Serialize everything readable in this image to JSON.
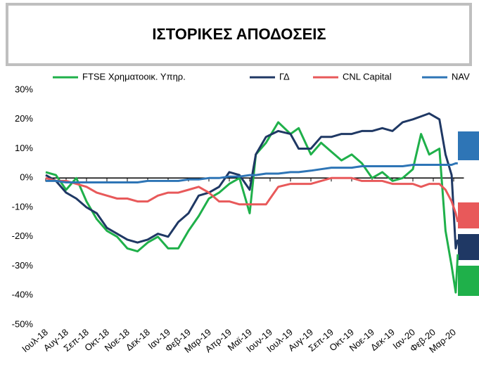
{
  "chart_data": {
    "type": "line",
    "title": "ΙΣΤΟΡΙΚΕΣ ΑΠΟΔΟΣΕΙΣ",
    "x": [
      0,
      0.5,
      1,
      1.5,
      2,
      2.5,
      3,
      3.5,
      4,
      4.5,
      5,
      5.5,
      6,
      6.5,
      7,
      7.5,
      8,
      8.5,
      9,
      9.5,
      10,
      10.3,
      10.8,
      11.4,
      12,
      12.4,
      13,
      13.5,
      14,
      14.5,
      15,
      15.5,
      16,
      16.5,
      17,
      17.5,
      18,
      18.4,
      18.8,
      19.3,
      19.6,
      19.9,
      20.1,
      20.2
    ],
    "series": [
      {
        "name": "FTSE Χρηματοοικ. Υπηρ.",
        "color": "#1fb04a",
        "values": [
          2,
          1,
          -4,
          0,
          -8,
          -14,
          -18,
          -20,
          -24,
          -25,
          -22,
          -20,
          -24,
          -24,
          -18,
          -13,
          -7,
          -5,
          -2,
          0,
          -12,
          8,
          12,
          19,
          15,
          17,
          8,
          12,
          9,
          6,
          8,
          5,
          0,
          2,
          -1,
          0,
          3,
          15,
          8,
          10,
          -18,
          -30,
          -39,
          -26
        ]
      },
      {
        "name": "ΓΔ",
        "color": "#1f3864",
        "values": [
          1,
          -1,
          -5,
          -7,
          -10,
          -12,
          -17,
          -19,
          -21,
          -22,
          -21,
          -19,
          -20,
          -15,
          -12,
          -6,
          -5,
          -3,
          2,
          1,
          -4,
          8,
          14,
          16,
          15,
          10,
          10,
          14,
          14,
          15,
          15,
          16,
          16,
          17,
          16,
          19,
          20,
          21,
          22,
          20,
          8,
          1,
          -24,
          -21
        ]
      },
      {
        "name": "CNL Capital",
        "color": "#e8595a",
        "values": [
          0,
          -1,
          -1,
          -2,
          -3,
          -5,
          -6,
          -7,
          -7,
          -8,
          -8,
          -6,
          -5,
          -5,
          -4,
          -3,
          -5,
          -8,
          -8,
          -9,
          -9,
          -9,
          -9,
          -3,
          -2,
          -2,
          -2,
          -1,
          0,
          0,
          0,
          -1,
          -1,
          -1,
          -2,
          -2,
          -2,
          -3,
          -2,
          -2,
          -4,
          -8,
          -12,
          -15
        ]
      },
      {
        "name": "NAV",
        "color": "#2e75b6",
        "values": [
          -1,
          -1,
          -1.5,
          -1.5,
          -1.5,
          -1.5,
          -1.5,
          -1.5,
          -1.5,
          -1.5,
          -1,
          -1,
          -1,
          -1,
          -0.5,
          -0.5,
          0,
          0,
          0.5,
          0.5,
          1,
          1,
          1.5,
          1.5,
          2,
          2,
          2.5,
          3,
          3.5,
          3.5,
          3.5,
          4,
          4,
          4,
          4,
          4,
          4.5,
          4.5,
          4.5,
          4.5,
          4.5,
          4.5,
          5,
          5
        ]
      }
    ],
    "xlim": [
      0,
      20.5
    ],
    "xticks": [
      {
        "value": 0,
        "label": "Ιουλ-18"
      },
      {
        "value": 1,
        "label": "Αυγ-18"
      },
      {
        "value": 2,
        "label": "Σεπ-18"
      },
      {
        "value": 3,
        "label": "Οκτ-18"
      },
      {
        "value": 4,
        "label": "Νοε-18"
      },
      {
        "value": 5,
        "label": "Δεκ-18"
      },
      {
        "value": 6,
        "label": "Ιαν-19"
      },
      {
        "value": 7,
        "label": "Φεβ-19"
      },
      {
        "value": 8,
        "label": "Μαρ-19"
      },
      {
        "value": 9,
        "label": "Απρ-19"
      },
      {
        "value": 10,
        "label": "Μαϊ-19"
      },
      {
        "value": 11,
        "label": "Ιουν-19"
      },
      {
        "value": 12,
        "label": "Ιουλ-19"
      },
      {
        "value": 13,
        "label": "Αυγ-19"
      },
      {
        "value": 14,
        "label": "Σεπ-19"
      },
      {
        "value": 15,
        "label": "Οκτ-19"
      },
      {
        "value": 16,
        "label": "Νοε-19"
      },
      {
        "value": 17,
        "label": "Δεκ-19"
      },
      {
        "value": 18,
        "label": "Ιαν-20"
      },
      {
        "value": 19,
        "label": "Φεβ-20"
      },
      {
        "value": 20,
        "label": "Μαρ-20"
      }
    ],
    "ylim": [
      -50,
      30
    ],
    "yticks": [
      {
        "value": 30,
        "label": "30%"
      },
      {
        "value": 20,
        "label": "20%"
      },
      {
        "value": 10,
        "label": "10%"
      },
      {
        "value": 0,
        "label": "0%"
      },
      {
        "value": -10,
        "label": "-10%"
      },
      {
        "value": -20,
        "label": "-20%"
      },
      {
        "value": -30,
        "label": "-30%"
      },
      {
        "value": -40,
        "label": "-40%"
      },
      {
        "value": -50,
        "label": "-50%"
      }
    ],
    "legend": "top"
  }
}
